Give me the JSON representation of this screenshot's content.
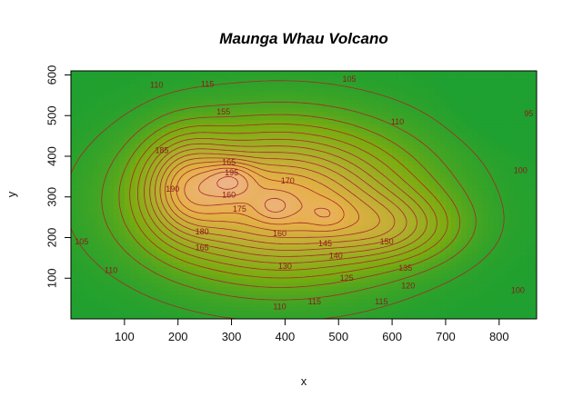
{
  "chart_data": {
    "type": "heatmap",
    "title": "Maunga Whau Volcano",
    "xlabel": "x",
    "ylabel": "y",
    "xlim": [
      0,
      870
    ],
    "ylim": [
      0,
      610
    ],
    "xticks": [
      "100",
      "200",
      "300",
      "400",
      "500",
      "600",
      "700",
      "800"
    ],
    "yticks": [
      "100",
      "200",
      "300",
      "400",
      "500",
      "600"
    ],
    "contour_levels": [
      95,
      100,
      105,
      110,
      115,
      120,
      125,
      130,
      135,
      140,
      145,
      150,
      155,
      160,
      165,
      170,
      175,
      180,
      185,
      190,
      195
    ],
    "contour_labels": [
      {
        "text": "105",
        "x": 520,
        "y": 590
      },
      {
        "text": "110",
        "x": 160,
        "y": 575
      },
      {
        "text": "115",
        "x": 255,
        "y": 578
      },
      {
        "text": "155",
        "x": 285,
        "y": 510
      },
      {
        "text": "110",
        "x": 610,
        "y": 485
      },
      {
        "text": "95",
        "x": 855,
        "y": 505
      },
      {
        "text": "185",
        "x": 170,
        "y": 415
      },
      {
        "text": "165",
        "x": 295,
        "y": 385
      },
      {
        "text": "195",
        "x": 300,
        "y": 360
      },
      {
        "text": "170",
        "x": 405,
        "y": 340
      },
      {
        "text": "190",
        "x": 190,
        "y": 320
      },
      {
        "text": "160",
        "x": 295,
        "y": 305
      },
      {
        "text": "175",
        "x": 315,
        "y": 270
      },
      {
        "text": "100",
        "x": 840,
        "y": 365
      },
      {
        "text": "180",
        "x": 245,
        "y": 215
      },
      {
        "text": "160",
        "x": 390,
        "y": 210
      },
      {
        "text": "150",
        "x": 590,
        "y": 190
      },
      {
        "text": "145",
        "x": 475,
        "y": 185
      },
      {
        "text": "165",
        "x": 245,
        "y": 175
      },
      {
        "text": "140",
        "x": 495,
        "y": 155
      },
      {
        "text": "105",
        "x": 20,
        "y": 190
      },
      {
        "text": "130",
        "x": 400,
        "y": 130
      },
      {
        "text": "135",
        "x": 625,
        "y": 125
      },
      {
        "text": "125",
        "x": 515,
        "y": 100
      },
      {
        "text": "120",
        "x": 630,
        "y": 82
      },
      {
        "text": "110",
        "x": 75,
        "y": 120
      },
      {
        "text": "115",
        "x": 455,
        "y": 42
      },
      {
        "text": "115",
        "x": 580,
        "y": 42
      },
      {
        "text": "110",
        "x": 390,
        "y": 30
      },
      {
        "text": "100",
        "x": 835,
        "y": 70
      }
    ],
    "peaks": [
      {
        "x": 195,
        "y": 320,
        "height": 195
      },
      {
        "x": 300,
        "y": 345,
        "height": 195
      },
      {
        "x": 380,
        "y": 275,
        "height": 165
      },
      {
        "x": 480,
        "y": 255,
        "height": 160
      },
      {
        "x": 610,
        "y": 225,
        "height": 150
      }
    ],
    "colors": {
      "low": "#1fa030",
      "mid_low": "#7aac10",
      "mid": "#e6b048",
      "high": "#f1b6a6",
      "peak": "#fff2ff",
      "contour": "#a52a2a"
    }
  }
}
